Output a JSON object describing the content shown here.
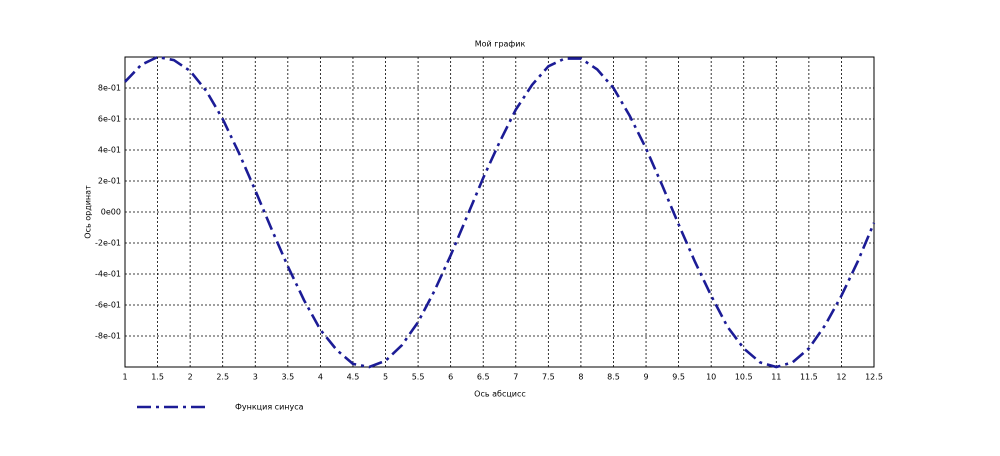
{
  "chart_data": {
    "type": "line",
    "title": "Мой график",
    "x_label": "Ось абсцисс",
    "y_label": "Ось ординат",
    "x": [
      1,
      1.25,
      1.5,
      1.75,
      2,
      2.25,
      2.5,
      2.75,
      3,
      3.25,
      3.5,
      3.75,
      4,
      4.25,
      4.5,
      4.75,
      5,
      5.25,
      5.5,
      5.75,
      6,
      6.25,
      6.5,
      6.75,
      7,
      7.25,
      7.5,
      7.75,
      8,
      8.25,
      8.5,
      8.75,
      9,
      9.25,
      9.5,
      9.75,
      10,
      10.25,
      10.5,
      10.75,
      11,
      11.25,
      11.5,
      11.75,
      12,
      12.25,
      12.5
    ],
    "series": [
      {
        "name": "Функция синуса",
        "color": "#1c1c96",
        "values": [
          0.84,
          0.95,
          1.0,
          0.98,
          0.91,
          0.78,
          0.6,
          0.38,
          0.14,
          -0.11,
          -0.35,
          -0.57,
          -0.76,
          -0.89,
          -0.98,
          -1.0,
          -0.96,
          -0.86,
          -0.71,
          -0.51,
          -0.28,
          -0.03,
          0.22,
          0.45,
          0.66,
          0.82,
          0.94,
          0.99,
          0.99,
          0.92,
          0.8,
          0.62,
          0.41,
          0.17,
          -0.08,
          -0.32,
          -0.54,
          -0.74,
          -0.88,
          -0.97,
          -1.0,
          -0.97,
          -0.88,
          -0.73,
          -0.54,
          -0.32,
          -0.07
        ]
      }
    ],
    "xlim": [
      1,
      12.5
    ],
    "ylim": [
      -1,
      1
    ],
    "xticks": [
      1,
      1.5,
      2,
      2.5,
      3,
      3.5,
      4,
      4.5,
      5,
      5.5,
      6,
      6.5,
      7,
      7.5,
      8,
      8.5,
      9,
      9.5,
      10,
      10.5,
      11,
      11.5,
      12,
      12.5
    ],
    "yticks": [
      {
        "value": -0.8,
        "label": "-8e-01"
      },
      {
        "value": -0.6,
        "label": "-6e-01"
      },
      {
        "value": -0.4,
        "label": "-4e-01"
      },
      {
        "value": -0.2,
        "label": "-2e-01"
      },
      {
        "value": 0,
        "label": "0e00"
      },
      {
        "value": 0.2,
        "label": "2e-01"
      },
      {
        "value": 0.4,
        "label": "4e-01"
      },
      {
        "value": 0.6,
        "label": "6e-01"
      },
      {
        "value": 0.8,
        "label": "8e-01"
      }
    ],
    "grid": true,
    "legend": "lower left"
  }
}
